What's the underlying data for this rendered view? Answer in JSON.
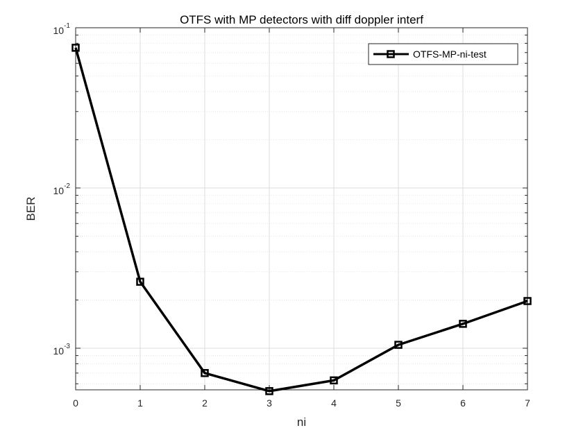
{
  "chart_data": {
    "type": "line",
    "title": "OTFS  with MP detectors with diff doppler interf",
    "xlabel": "ni",
    "ylabel": "BER",
    "x": [
      0,
      1,
      2,
      3,
      4,
      5,
      6,
      7
    ],
    "series": [
      {
        "name": "OTFS-MP-ni-test",
        "values": [
          0.075,
          0.0026,
          0.0007,
          0.00054,
          0.00063,
          0.00105,
          0.00142,
          0.00197
        ],
        "color": "#000000",
        "marker": "square"
      }
    ],
    "xlim": [
      0,
      7
    ],
    "ylim": [
      0.00055,
      0.1
    ],
    "yscale": "log",
    "xticks": [
      "0",
      "1",
      "2",
      "3",
      "4",
      "5",
      "6",
      "7"
    ],
    "yticks": [
      {
        "base": "10",
        "exp": "-3"
      },
      {
        "base": "10",
        "exp": "-2"
      },
      {
        "base": "10",
        "exp": "-1"
      }
    ],
    "grid": true,
    "legend_position": "top-right"
  }
}
